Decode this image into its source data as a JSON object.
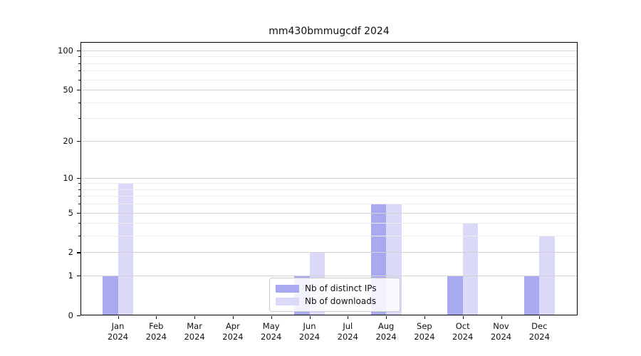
{
  "title": "mm430bmmugcdf 2024",
  "colors": {
    "series_distinct_ips": "#a9a9f1",
    "series_downloads": "#dadaf8",
    "grid_major": "#d2d2d2",
    "grid_minor": "#ececec",
    "axis": "#000000",
    "legend_border": "#cccccc"
  },
  "chart_data": {
    "type": "bar",
    "title": "mm430bmmugcdf 2024",
    "categories": [
      "Jan",
      "Feb",
      "Mar",
      "Apr",
      "May",
      "Jun",
      "Jul",
      "Aug",
      "Sep",
      "Oct",
      "Nov",
      "Dec"
    ],
    "category_year": "2024",
    "series": [
      {
        "name": "Nb of distinct IPs",
        "color": "#a9a9f1",
        "values": [
          1,
          0,
          0,
          0,
          0,
          1,
          0,
          6,
          0,
          1,
          0,
          1
        ]
      },
      {
        "name": "Nb of downloads",
        "color": "#dadaf8",
        "values": [
          9,
          0,
          0,
          0,
          0,
          2,
          0,
          6,
          0,
          4,
          0,
          3
        ]
      }
    ],
    "yscale": "log1p",
    "ylim": [
      0,
      116
    ],
    "y_major_ticks": [
      0,
      1,
      2,
      5,
      10,
      20,
      50,
      100
    ],
    "y_minor_ticks": [
      3,
      4,
      6,
      7,
      8,
      9,
      30,
      40,
      60,
      70,
      80,
      90
    ],
    "grid": "horizontal major+minor, drawn over bars",
    "legend_position": "lower center"
  },
  "legend": {
    "items": [
      {
        "label": "Nb of distinct IPs"
      },
      {
        "label": "Nb of downloads"
      }
    ]
  }
}
